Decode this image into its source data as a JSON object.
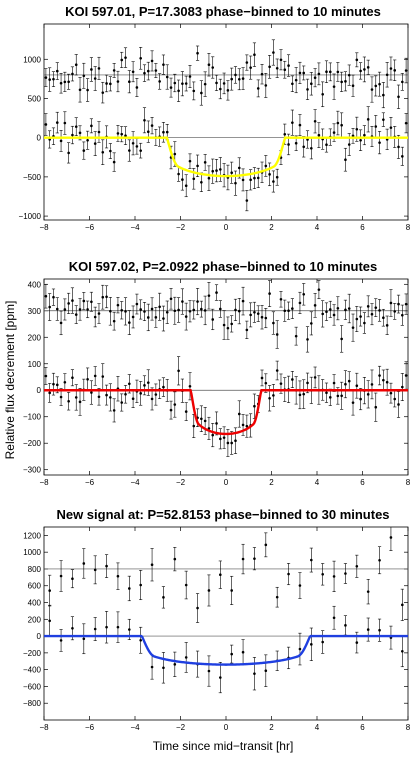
{
  "figure": {
    "ylabel": "Relative flux decrement [ppm]",
    "xlabel": "Time since mid−transit [hr]"
  },
  "chart_data": [
    {
      "type": "scatter",
      "title": "KOI 597.01, P=17.3083 phase−binned to 10 minutes",
      "xlim": [
        -8,
        8
      ],
      "ylim": [
        -1050,
        1450
      ],
      "xticks": [
        -8,
        -6,
        -4,
        -2,
        0,
        2,
        4,
        6,
        8
      ],
      "yticks": [
        -1000,
        -500,
        0,
        500,
        1000
      ],
      "series": [
        {
          "role": "out-of-transit",
          "offset": 800,
          "bin_minutes": 10,
          "noise": 120,
          "err": 125,
          "seed": 11
        },
        {
          "role": "in-transit",
          "offset": 0,
          "bin_minutes": 10,
          "noise": 120,
          "err": 125,
          "seed": 29
        }
      ],
      "model": {
        "color": "#ffff00",
        "depth": 490,
        "half_duration": 2.6,
        "ingress": 0.5,
        "limb": 0.6
      },
      "reference_lines": [
        800,
        0
      ]
    },
    {
      "type": "scatter",
      "title": "KOI 597.02, P=2.0922 phase−binned to 10 minutes",
      "xlim": [
        -8,
        8
      ],
      "ylim": [
        -320,
        420
      ],
      "xticks": [
        -8,
        -6,
        -4,
        -2,
        0,
        2,
        4,
        6,
        8
      ],
      "yticks": [
        -300,
        -200,
        -100,
        0,
        100,
        200,
        300,
        400
      ],
      "series": [
        {
          "role": "out-of-transit",
          "offset": 300,
          "bin_minutes": 10,
          "noise": 38,
          "err": 42,
          "seed": 7
        },
        {
          "role": "in-transit",
          "offset": 0,
          "bin_minutes": 10,
          "noise": 38,
          "err": 42,
          "seed": 53
        }
      ],
      "model": {
        "color": "#ee0000",
        "depth": 165,
        "half_duration": 1.55,
        "ingress": 0.35,
        "limb": 0.6
      },
      "reference_lines": [
        300,
        0
      ]
    },
    {
      "type": "scatter",
      "title": "New signal at: P=52.8153 phase−binned to 30 minutes",
      "xlim": [
        -8,
        8
      ],
      "ylim": [
        -1000,
        1300
      ],
      "xticks": [
        -8,
        -6,
        -4,
        -2,
        0,
        2,
        4,
        6,
        8
      ],
      "yticks": [
        -800,
        -600,
        -400,
        -200,
        0,
        200,
        400,
        600,
        800,
        1000,
        1200
      ],
      "series": [
        {
          "role": "out-of-transit",
          "offset": 800,
          "bin_minutes": 30,
          "noise": 160,
          "err": 150,
          "seed": 3
        },
        {
          "role": "in-transit",
          "offset": 0,
          "bin_minutes": 30,
          "noise": 110,
          "err": 150,
          "seed": 41
        }
      ],
      "model": {
        "color": "#1f3fe0",
        "depth": 340,
        "half_duration": 3.7,
        "ingress": 0.55,
        "limb": 0.6
      },
      "reference_lines": [
        800,
        0
      ]
    }
  ]
}
